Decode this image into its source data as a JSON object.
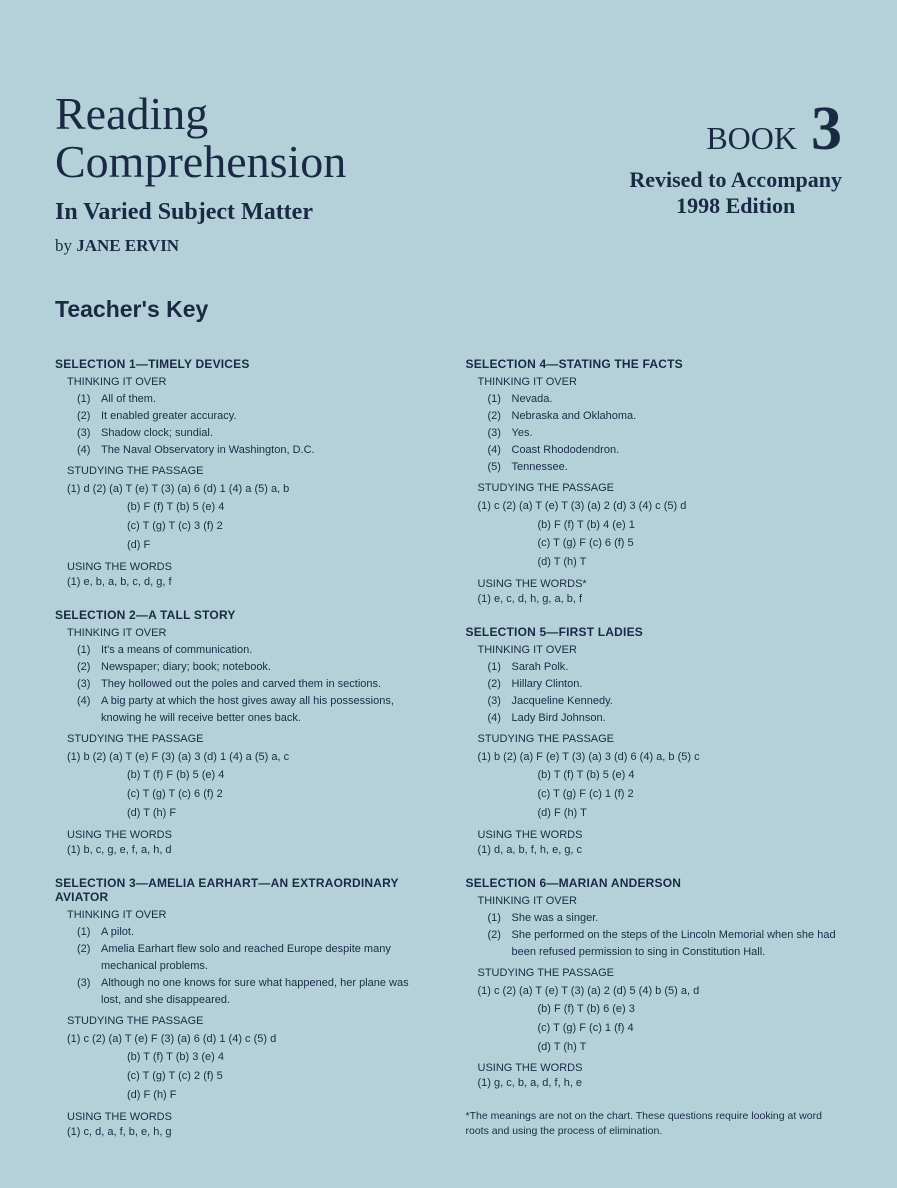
{
  "header": {
    "title_line1": "Reading",
    "title_line2": "Comprehension",
    "subtitle": "In Varied Subject Matter",
    "byline_prefix": "by ",
    "author": "JANE ERVIN",
    "book_word": "BOOK",
    "book_num": "3",
    "revised_line1": "Revised to Accompany",
    "revised_line2": "1998 Edition",
    "teachers_key": "Teacher's Key"
  },
  "labels": {
    "thinking": "THINKING IT OVER",
    "studying": "STUDYING THE PASSAGE",
    "using": "USING THE WORDS",
    "using_star": "USING THE WORDS*"
  },
  "left": {
    "s1": {
      "title": "SELECTION 1—TIMELY DEVICES",
      "thinking": [
        {
          "n": "(1)",
          "t": "All of them."
        },
        {
          "n": "(2)",
          "t": "It enabled greater accuracy."
        },
        {
          "n": "(3)",
          "t": "Shadow clock; sundial."
        },
        {
          "n": "(4)",
          "t": "The Naval Observatory in Washington, D.C."
        }
      ],
      "study": [
        "(1) d   (2) (a) T   (e) T   (3) (a) 6   (d) 1   (4) a   (5) a, b",
        "(b) F   (f) T        (b) 5   (e) 4",
        "(c) T   (g) T        (c) 3   (f) 2",
        "(d) F"
      ],
      "using": "(1) e, b, a, b, c, d, g, f"
    },
    "s2": {
      "title": "SELECTION 2—A TALL STORY",
      "thinking": [
        {
          "n": "(1)",
          "t": "It's a means of communication."
        },
        {
          "n": "(2)",
          "t": "Newspaper; diary; book; notebook."
        },
        {
          "n": "(3)",
          "t": "They hollowed out the poles and carved them in sections."
        },
        {
          "n": "(4)",
          "t": "A big party at which the host gives away all his possessions, knowing he will receive better ones back."
        }
      ],
      "study": [
        "(1) b   (2) (a) T   (e) F   (3) (a) 3   (d) 1   (4) a   (5) a, c",
        "(b) T   (f) F        (b) 5   (e) 4",
        "(c) T   (g) T        (c) 6   (f) 2",
        "(d) T   (h) F"
      ],
      "using": "(1) b, c, g, e, f, a, h, d"
    },
    "s3": {
      "title": "SELECTION 3—AMELIA EARHART—AN EXTRAORDINARY AVIATOR",
      "thinking": [
        {
          "n": "(1)",
          "t": "A pilot."
        },
        {
          "n": "(2)",
          "t": "Amelia Earhart flew solo and reached Europe despite many mechanical problems."
        },
        {
          "n": "(3)",
          "t": "Although no one knows for sure what happened, her plane was lost, and she disappeared."
        }
      ],
      "study": [
        "(1) c   (2) (a) T   (e) F   (3) (a) 6   (d) 1   (4) c   (5) d",
        "(b) T   (f) T        (b) 3   (e) 4",
        "(c) T   (g) T        (c) 2   (f) 5",
        "(d) F   (h) F"
      ],
      "using": "(1) c, d, a, f, b, e, h, g"
    }
  },
  "right": {
    "s4": {
      "title": "SELECTION 4—STATING THE FACTS",
      "thinking": [
        {
          "n": "(1)",
          "t": "Nevada."
        },
        {
          "n": "(2)",
          "t": "Nebraska and Oklahoma."
        },
        {
          "n": "(3)",
          "t": "Yes."
        },
        {
          "n": "(4)",
          "t": "Coast Rhododendron."
        },
        {
          "n": "(5)",
          "t": "Tennessee."
        }
      ],
      "study": [
        "(1) c   (2) (a) T   (e) T   (3) (a) 2   (d) 3   (4) c   (5) d",
        "(b) F   (f) T        (b) 4   (e) 1",
        "(c) T   (g) F        (c) 6   (f) 5",
        "(d) T   (h) T"
      ],
      "using": "(1) e, c, d, h, g, a, b, f"
    },
    "s5": {
      "title": "SELECTION 5—FIRST LADIES",
      "thinking": [
        {
          "n": "(1)",
          "t": "Sarah Polk."
        },
        {
          "n": "(2)",
          "t": "Hillary Clinton."
        },
        {
          "n": "(3)",
          "t": "Jacqueline Kennedy."
        },
        {
          "n": "(4)",
          "t": "Lady Bird Johnson."
        }
      ],
      "study": [
        "(1) b   (2) (a) F   (e) T   (3) (a) 3   (d) 6   (4) a, b   (5) c",
        "(b) T   (f) T        (b) 5   (e) 4",
        "(c) T   (g) F        (c) 1   (f) 2",
        "(d) F   (h) T"
      ],
      "using": "(1) d, a, b, f, h, e, g, c"
    },
    "s6": {
      "title": "SELECTION 6—MARIAN ANDERSON",
      "thinking": [
        {
          "n": "(1)",
          "t": "She was a singer."
        },
        {
          "n": "(2)",
          "t": "She performed on the steps of the Lincoln Memorial when she had been refused permission to sing in Constitution Hall."
        }
      ],
      "study": [
        "(1) c   (2) (a) T   (e) T   (3) (a) 2   (d) 5   (4) b   (5) a, d",
        "(b) F   (f) T        (b) 6   (e) 3",
        "(c) T   (g) F        (c) 1   (f) 4",
        "(d) T   (h) T"
      ],
      "using": "(1) g, c, b, a, d, f, h, e"
    },
    "footnote": "*The meanings are not on the chart. These questions require looking at word roots and using the process of elimination."
  }
}
